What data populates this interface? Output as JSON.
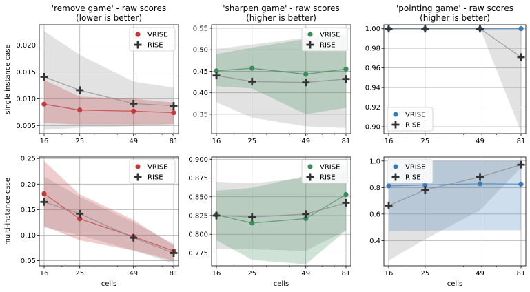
{
  "chart_data": [
    {
      "id": "remove-single",
      "type": "line",
      "title": [
        "'remove game' - raw scores",
        "(lower is better)"
      ],
      "xlabel": "",
      "ylabel": "single instance case",
      "x": [
        16,
        25,
        49,
        81
      ],
      "xticks": [
        "16",
        "25",
        "49",
        "81"
      ],
      "ylim": [
        0.0035,
        0.0238
      ],
      "yticks": [
        0.005,
        0.01,
        0.015,
        0.02
      ],
      "yticklabels": [
        "0.005",
        "0.010",
        "0.015",
        "0.020"
      ],
      "legend": "top-right",
      "series": [
        {
          "name": "VRISE",
          "color": "#c0393b",
          "marker": "circle",
          "values": [
            0.009,
            0.0079,
            0.0077,
            0.0074
          ],
          "band_lo": [
            0.0055,
            0.0052,
            0.0052,
            0.0052
          ],
          "band_hi": [
            0.0135,
            0.0104,
            0.01,
            0.0093
          ]
        },
        {
          "name": "RISE",
          "color": "#333333",
          "marker": "plus",
          "values": [
            0.0141,
            0.0116,
            0.0091,
            0.0087
          ],
          "band_lo": [
            0.0042,
            0.0046,
            0.0049,
            0.0053
          ],
          "band_hi": [
            0.0226,
            0.0182,
            0.0132,
            0.0121
          ]
        }
      ]
    },
    {
      "id": "sharpen-single",
      "type": "line",
      "title": [
        "'sharpen game' - raw scores",
        "(higher is better)"
      ],
      "xlabel": "",
      "ylabel": "",
      "x": [
        16,
        25,
        49,
        81
      ],
      "xticks": [
        "16",
        "25",
        "49",
        "81"
      ],
      "ylim": [
        0.305,
        0.558
      ],
      "yticks": [
        0.35,
        0.4,
        0.45,
        0.5,
        0.55
      ],
      "yticklabels": [
        "0.35",
        "0.40",
        "0.45",
        "0.50",
        "0.55"
      ],
      "legend": "top-right",
      "series": [
        {
          "name": "VRISE",
          "color": "#3a8a5a",
          "marker": "circle",
          "values": [
            0.451,
            0.457,
            0.443,
            0.455
          ],
          "band_lo": [
            0.415,
            0.41,
            0.35,
            0.365
          ],
          "band_hi": [
            0.49,
            0.505,
            0.525,
            0.535
          ]
        },
        {
          "name": "RISE",
          "color": "#333333",
          "marker": "plus",
          "values": [
            0.44,
            0.426,
            0.424,
            0.432
          ],
          "band_lo": [
            0.378,
            0.342,
            0.322,
            0.318
          ],
          "band_hi": [
            0.502,
            0.512,
            0.528,
            0.542
          ]
        }
      ]
    },
    {
      "id": "pointing-single",
      "type": "line",
      "title": [
        "'pointing game' - raw scores",
        "(higher is better)"
      ],
      "xlabel": "",
      "ylabel": "",
      "x": [
        16,
        25,
        49,
        81
      ],
      "xticks": [
        "16",
        "25",
        "49",
        "81"
      ],
      "ylim": [
        0.893,
        1.004
      ],
      "yticks": [
        0.9,
        0.92,
        0.94,
        0.96,
        0.98,
        1.0
      ],
      "yticklabels": [
        "0.90",
        "0.92",
        "0.94",
        "0.96",
        "0.98",
        "1.00"
      ],
      "legend": "bottom-left",
      "series": [
        {
          "name": "VRISE",
          "color": "#3a7ab8",
          "marker": "circle",
          "values": [
            1.0,
            1.0,
            1.0,
            1.0
          ],
          "band_lo": [
            1.0,
            1.0,
            1.0,
            1.0
          ],
          "band_hi": [
            1.0,
            1.0,
            1.0,
            1.0
          ]
        },
        {
          "name": "RISE",
          "color": "#333333",
          "marker": "plus",
          "values": [
            1.0,
            1.0,
            1.0,
            0.971
          ],
          "band_lo": [
            1.0,
            1.0,
            1.0,
            0.895
          ],
          "band_hi": [
            1.0,
            1.0,
            1.0,
            1.0
          ]
        }
      ]
    },
    {
      "id": "remove-multi",
      "type": "line",
      "title": [],
      "xlabel": "cells",
      "ylabel": "multi-instance case",
      "x": [
        16,
        25,
        49,
        81
      ],
      "xticks": [
        "16",
        "25",
        "49",
        "81"
      ],
      "ylim": [
        0.04,
        0.253
      ],
      "yticks": [
        0.05,
        0.1,
        0.15,
        0.2,
        0.25
      ],
      "yticklabels": [
        "0.05",
        "0.10",
        "0.15",
        "0.20",
        "0.25"
      ],
      "legend": "top-right",
      "series": [
        {
          "name": "VRISE",
          "color": "#c0393b",
          "marker": "circle",
          "values": [
            0.181,
            0.132,
            0.097,
            0.069
          ],
          "band_lo": [
            0.118,
            0.09,
            0.07,
            0.05
          ],
          "band_hi": [
            0.245,
            0.18,
            0.13,
            0.08
          ]
        },
        {
          "name": "RISE",
          "color": "#333333",
          "marker": "plus",
          "values": [
            0.165,
            0.142,
            0.095,
            0.065
          ],
          "band_lo": [
            0.115,
            0.1,
            0.07,
            0.045
          ],
          "band_hi": [
            0.215,
            0.175,
            0.125,
            0.083
          ]
        }
      ]
    },
    {
      "id": "sharpen-multi",
      "type": "line",
      "title": [],
      "xlabel": "cells",
      "ylabel": "",
      "x": [
        16,
        25,
        49,
        81
      ],
      "xticks": [
        "16",
        "25",
        "49",
        "81"
      ],
      "ylim": [
        0.758,
        0.903
      ],
      "yticks": [
        0.775,
        0.8,
        0.825,
        0.85,
        0.875,
        0.9
      ],
      "yticklabels": [
        "0.775",
        "0.800",
        "0.825",
        "0.850",
        "0.875",
        "0.900"
      ],
      "legend": "top-right",
      "series": [
        {
          "name": "VRISE",
          "color": "#3a8a5a",
          "marker": "circle",
          "values": [
            0.826,
            0.815,
            0.821,
            0.853
          ],
          "band_lo": [
            0.792,
            0.766,
            0.76,
            0.805
          ],
          "band_hi": [
            0.858,
            0.862,
            0.878,
            0.893
          ]
        },
        {
          "name": "RISE",
          "color": "#333333",
          "marker": "plus",
          "values": [
            0.825,
            0.823,
            0.827,
            0.842
          ],
          "band_lo": [
            0.78,
            0.78,
            0.778,
            0.805
          ],
          "band_hi": [
            0.87,
            0.868,
            0.875,
            0.883
          ]
        }
      ]
    },
    {
      "id": "pointing-multi",
      "type": "line",
      "title": [],
      "xlabel": "cells",
      "ylabel": "",
      "x": [
        16,
        25,
        49,
        81
      ],
      "xticks": [
        "16",
        "25",
        "49",
        "81"
      ],
      "ylim": [
        0.21,
        1.03
      ],
      "yticks": [
        0.4,
        0.6,
        0.8,
        1.0
      ],
      "yticklabels": [
        "0.4",
        "0.6",
        "0.8",
        "1.0"
      ],
      "legend": "top-left",
      "series": [
        {
          "name": "VRISE",
          "color": "#3a7ab8",
          "marker": "circle",
          "values": [
            0.812,
            0.82,
            0.828,
            0.826
          ],
          "band_lo": [
            0.468,
            0.475,
            0.478,
            0.478
          ],
          "band_hi": [
            1.0,
            1.0,
            1.0,
            1.0
          ]
        },
        {
          "name": "RISE",
          "color": "#333333",
          "marker": "plus",
          "values": [
            0.664,
            0.782,
            0.88,
            0.972
          ],
          "band_lo": [
            0.25,
            0.41,
            0.63,
            0.95
          ],
          "band_hi": [
            1.0,
            1.0,
            1.0,
            1.0
          ]
        }
      ]
    }
  ]
}
